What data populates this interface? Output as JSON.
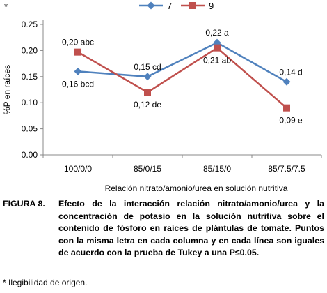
{
  "corner_mark": "*",
  "chart_data": {
    "type": "line",
    "categories": [
      "100/0/0",
      "85/0/15",
      "85/15/0",
      "85/7.5/7.5"
    ],
    "ylabel": "%P en raíces",
    "xlabel": "Relación nitrato/amonio/urea en solución nutritiva",
    "ylim": [
      0,
      0.25
    ],
    "yticks": [
      "0.00",
      "0.05",
      "0.10",
      "0.15",
      "0.20",
      "0.25"
    ],
    "grid": false,
    "legend_position": "top",
    "series": [
      {
        "name": "7",
        "color": "#4F81BD",
        "marker": "diamond",
        "values": [
          0.16,
          0.15,
          0.215,
          0.14
        ],
        "labels": [
          "0,16 bcd",
          "0,15 cd",
          "0,22 a",
          "0,14 d"
        ]
      },
      {
        "name": "9",
        "color": "#C0504D",
        "marker": "square",
        "values": [
          0.197,
          0.12,
          0.205,
          0.09
        ],
        "labels": [
          "0,20 abc",
          "0,12 de",
          "0,21 ab",
          "0,09 e"
        ]
      }
    ]
  },
  "caption": {
    "label": "FIGURA 8.",
    "text": "Efecto de la interacción relación nitrato/amonio/urea y la concentración de potasio en la solución nutritiva sobre el contenido de fósforo en raíces de plántulas de tomate. Puntos con la misma letra en cada columna y en cada línea son iguales de acuerdo con la prueba de Tukey a una P≤0.05."
  },
  "footnote": "* Ilegibilidad de origen."
}
